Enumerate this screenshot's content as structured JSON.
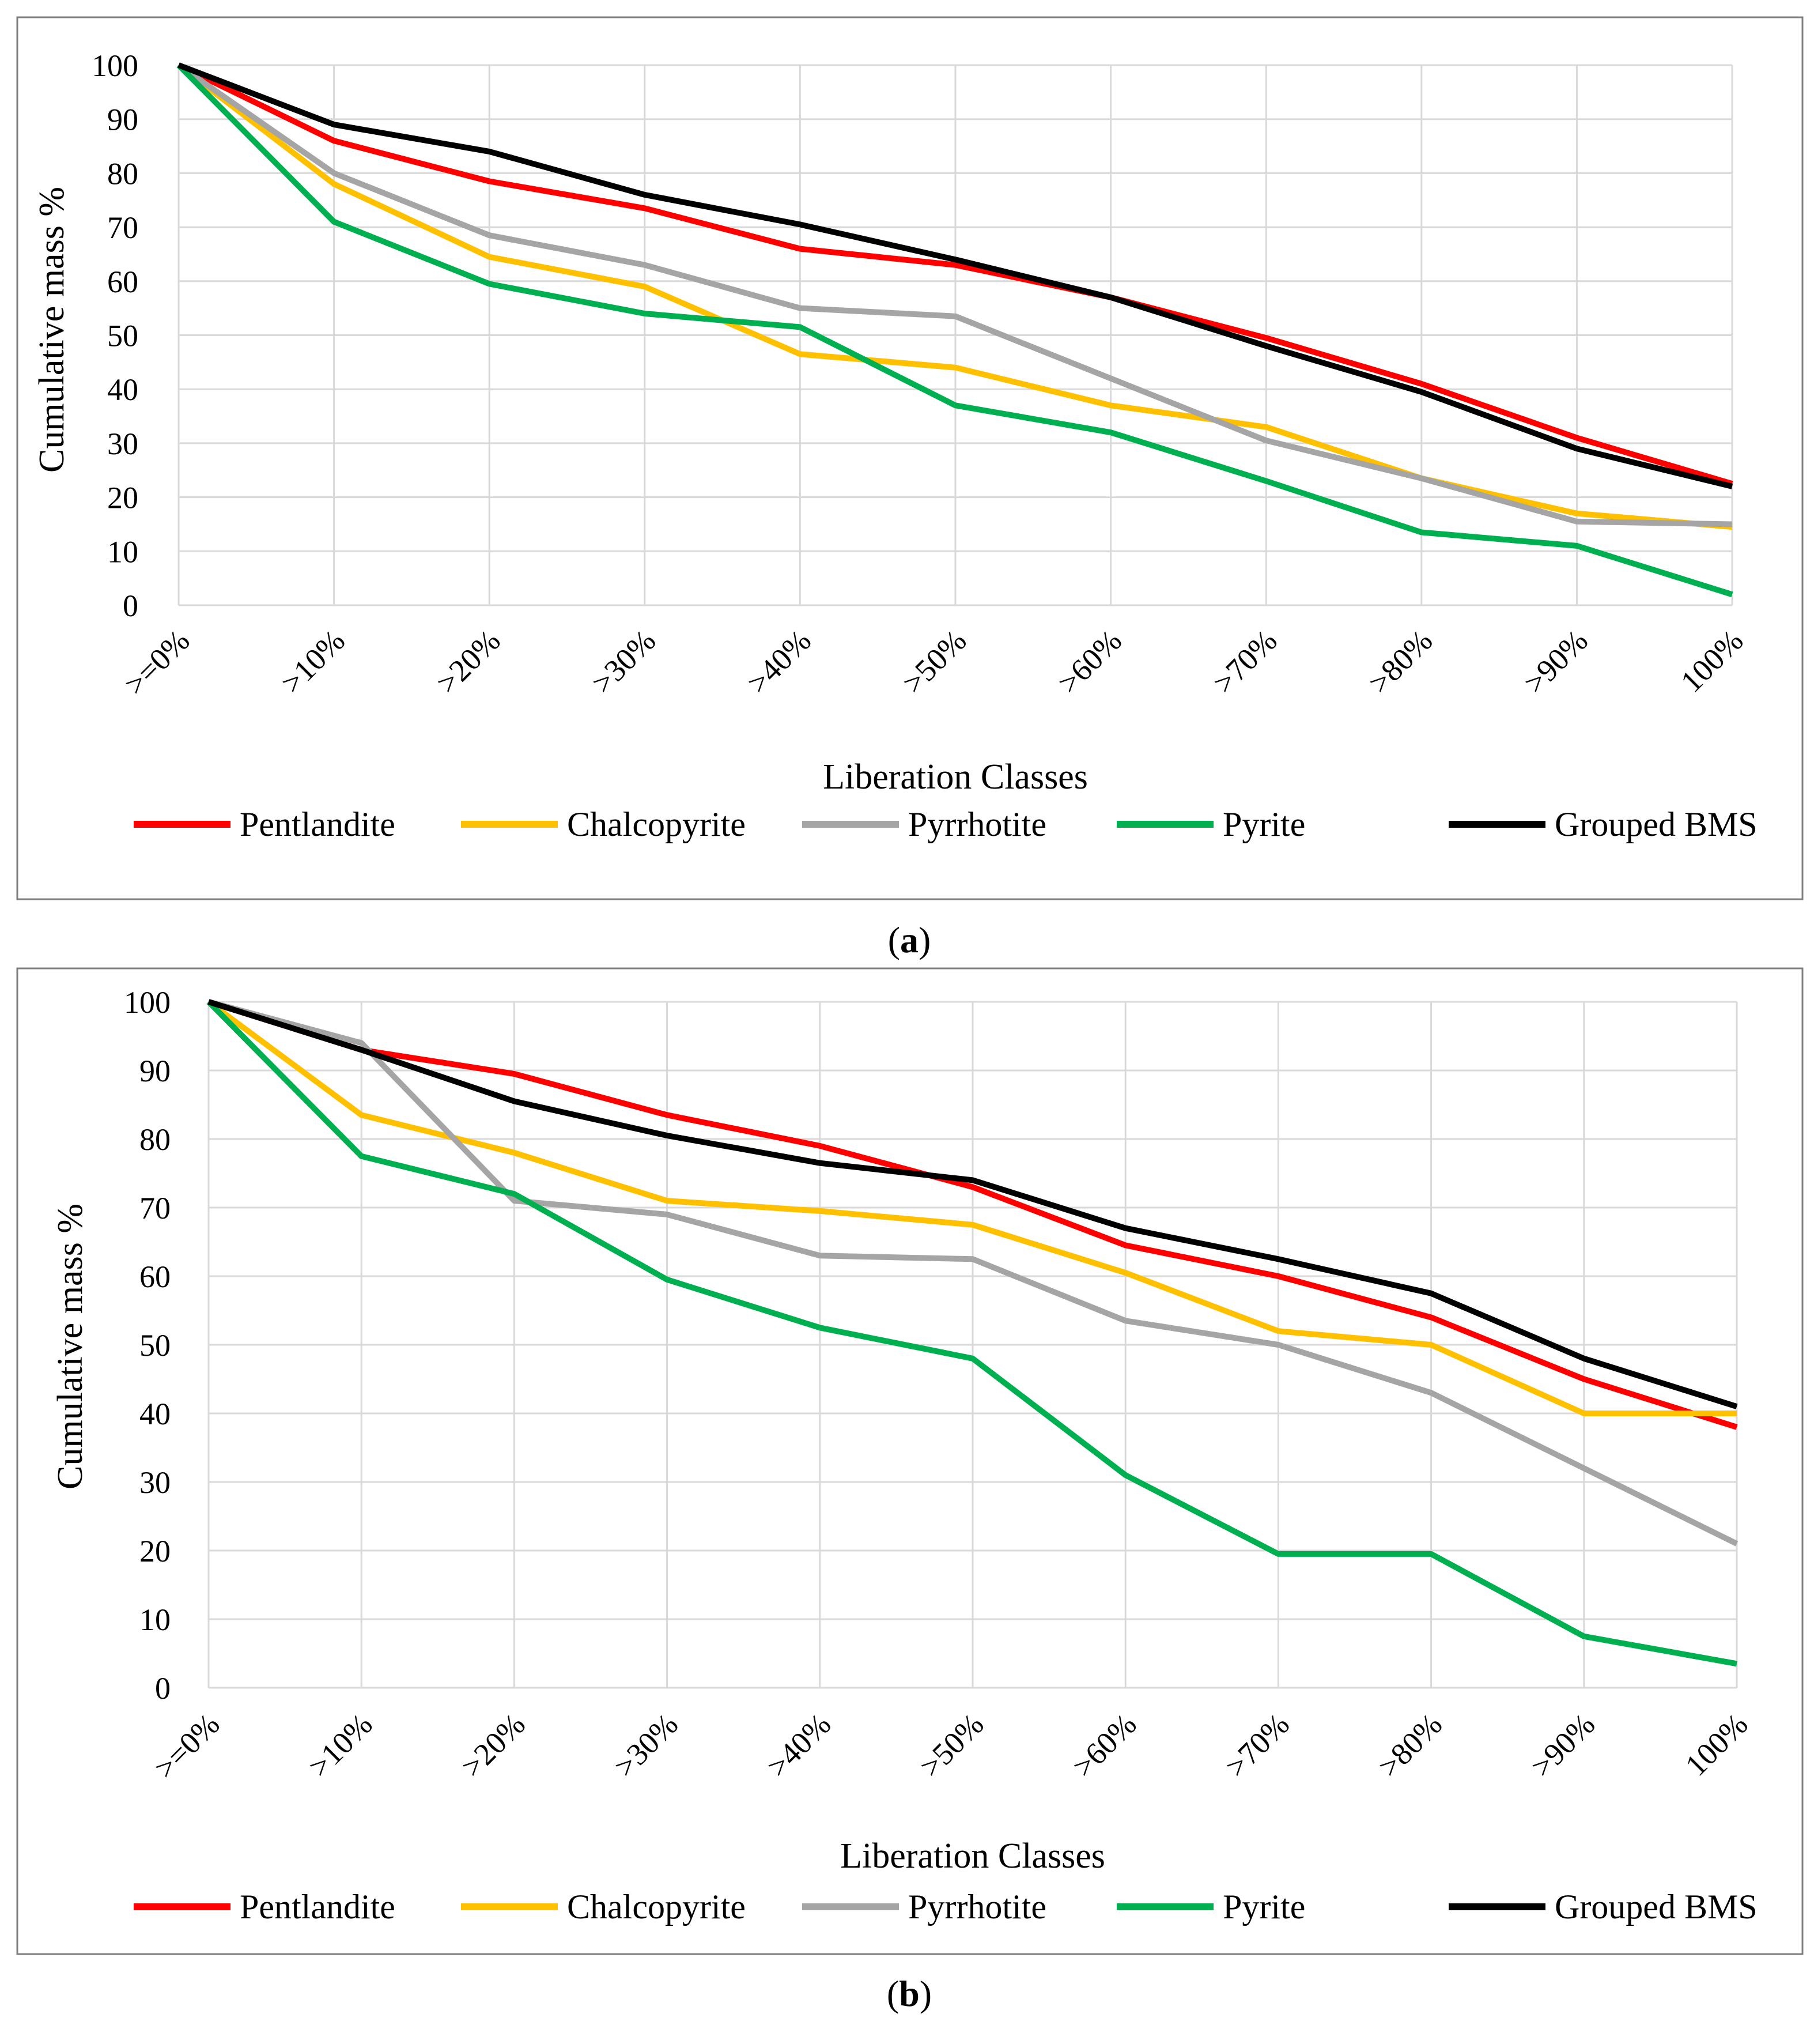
{
  "figure": {
    "panels": [
      {
        "caption_open": "(",
        "caption_label": "a",
        "caption_close": ")"
      },
      {
        "caption_open": "(",
        "caption_label": "b",
        "caption_close": ")"
      }
    ]
  },
  "colors": {
    "Pentlandite": "#FF0000",
    "Chalcopyrite": "#FFC000",
    "Pyrrhotite": "#A5A5A5",
    "Pyrite": "#00B050",
    "Grouped BMS": "#000000",
    "grid": "#D9D9D9",
    "frame": "#7F7F7F"
  },
  "chart_data": [
    {
      "type": "line",
      "title": "",
      "xlabel": "Liberation Classes",
      "ylabel": "Cumulative mass %",
      "categories": [
        ">=0%",
        ">10%",
        ">20%",
        ">30%",
        ">40%",
        ">50%",
        ">60%",
        ">70%",
        ">80%",
        ">90%",
        "100%"
      ],
      "ylim": [
        0,
        100
      ],
      "yticks": [
        0,
        10,
        20,
        30,
        40,
        50,
        60,
        70,
        80,
        90,
        100
      ],
      "grid": true,
      "legend_position": "bottom",
      "series": [
        {
          "name": "Pentlandite",
          "values": [
            100,
            86,
            78.5,
            73.5,
            66,
            63,
            57,
            49.5,
            41,
            31,
            22.5
          ]
        },
        {
          "name": "Chalcopyrite",
          "values": [
            100,
            78,
            64.5,
            59,
            46.5,
            44,
            37,
            33,
            23.5,
            17,
            14.5
          ]
        },
        {
          "name": "Pyrrhotite",
          "values": [
            100,
            80,
            68.5,
            63,
            55,
            53.5,
            42,
            30.5,
            23.5,
            15.5,
            15
          ]
        },
        {
          "name": "Pyrite",
          "values": [
            100,
            71,
            59.5,
            54,
            51.5,
            37,
            32,
            23,
            13.5,
            11,
            2
          ]
        },
        {
          "name": "Grouped BMS",
          "values": [
            100,
            89,
            84,
            76,
            70.5,
            64,
            57,
            48,
            39.5,
            29,
            22
          ]
        }
      ]
    },
    {
      "type": "line",
      "title": "",
      "xlabel": "Liberation Classes",
      "ylabel": "Cumulative mass %",
      "categories": [
        ">=0%",
        ">10%",
        ">20%",
        ">30%",
        ">40%",
        ">50%",
        ">60%",
        ">70%",
        ">80%",
        ">90%",
        "100%"
      ],
      "ylim": [
        0,
        100
      ],
      "yticks": [
        0,
        10,
        20,
        30,
        40,
        50,
        60,
        70,
        80,
        90,
        100
      ],
      "grid": true,
      "legend_position": "bottom",
      "series": [
        {
          "name": "Pentlandite",
          "values": [
            100,
            93,
            89.5,
            83.5,
            79,
            73,
            64.5,
            60,
            54,
            45,
            38
          ]
        },
        {
          "name": "Chalcopyrite",
          "values": [
            100,
            83.5,
            78,
            71,
            69.5,
            67.5,
            60.5,
            52,
            50,
            40,
            40
          ]
        },
        {
          "name": "Pyrrhotite",
          "values": [
            100,
            94,
            71,
            69,
            63,
            62.5,
            53.5,
            50,
            43,
            32,
            21
          ]
        },
        {
          "name": "Pyrite",
          "values": [
            100,
            77.5,
            72,
            59.5,
            52.5,
            48,
            31,
            19.5,
            19.5,
            7.5,
            3.5
          ]
        },
        {
          "name": "Grouped BMS",
          "values": [
            100,
            93,
            85.5,
            80.5,
            76.5,
            74,
            67,
            62.5,
            57.5,
            48,
            41
          ]
        }
      ]
    }
  ]
}
